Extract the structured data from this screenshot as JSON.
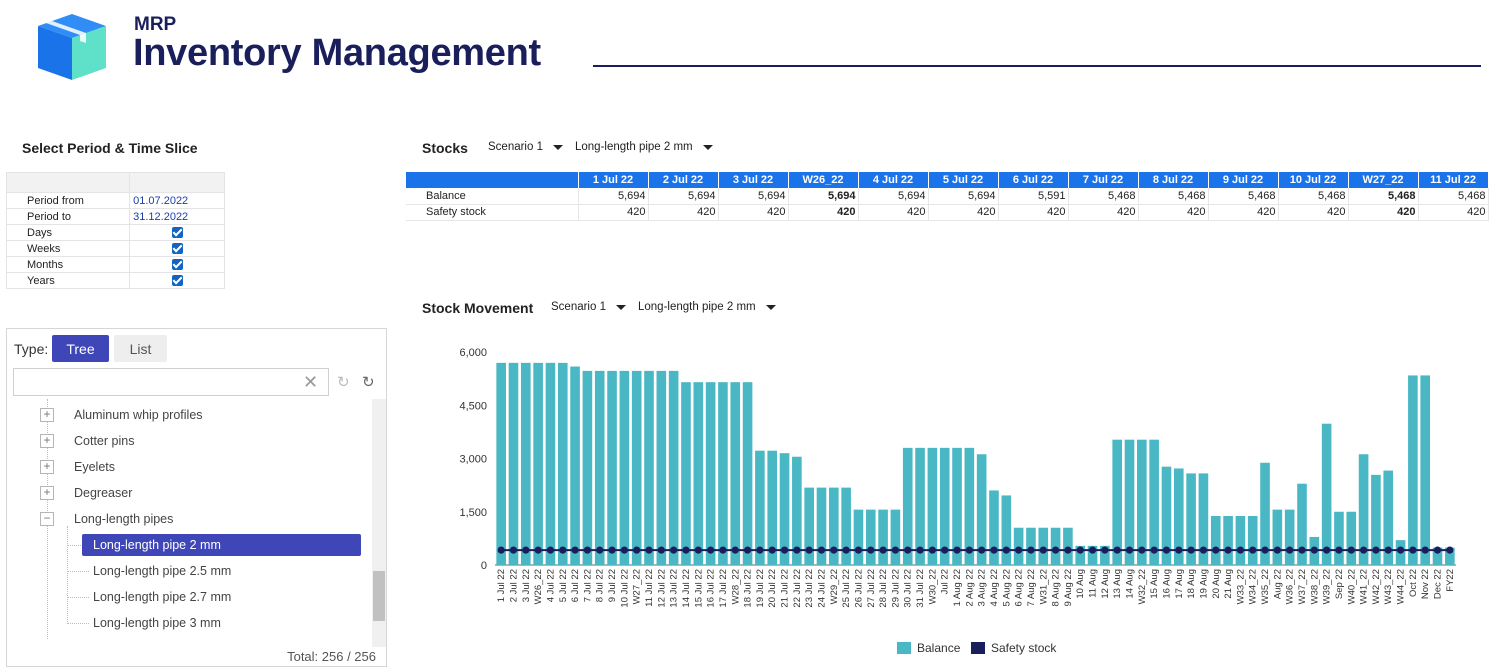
{
  "header": {
    "brand_small": "MRP",
    "title": "Inventory Management",
    "brand_color": "#1a1f5c"
  },
  "period": {
    "title": "Select Period & Time Slice",
    "rows": [
      {
        "label": "Period from",
        "value": "01.07.2022"
      },
      {
        "label": "Period to",
        "value": "31.12.2022"
      },
      {
        "label": "Days",
        "checked": true
      },
      {
        "label": "Weeks",
        "checked": true
      },
      {
        "label": "Months",
        "checked": true
      },
      {
        "label": "Years",
        "checked": true
      }
    ]
  },
  "tree": {
    "type_label": "Type:",
    "tree_button": "Tree",
    "list_button": "List",
    "search_value": "",
    "items": [
      {
        "label": "Aluminum whip profiles",
        "expander": "+"
      },
      {
        "label": "Cotter pins",
        "expander": "+"
      },
      {
        "label": "Eyelets",
        "expander": "+"
      },
      {
        "label": "Degreaser",
        "expander": "+"
      },
      {
        "label": "Long-length pipes",
        "expander": "−"
      }
    ],
    "children": [
      {
        "label": "Long-length pipe 2 mm",
        "selected": true
      },
      {
        "label": "Long-length pipe 2.5 mm"
      },
      {
        "label": "Long-length pipe 2.7 mm"
      },
      {
        "label": "Long-length pipe 3 mm"
      }
    ],
    "total": "Total: 256 / 256",
    "selected_color": "#3f47b8"
  },
  "stocks": {
    "title": "Stocks",
    "scenario": "Scenario 1",
    "product": "Long-length pipe 2 mm",
    "columns": [
      "1 Jul 22",
      "2 Jul 22",
      "3 Jul 22",
      "W26_22",
      "4 Jul 22",
      "5 Jul 22",
      "6 Jul 22",
      "7 Jul 22",
      "8 Jul 22",
      "9 Jul 22",
      "10 Jul 22",
      "W27_22",
      "11 Jul 22"
    ],
    "rows": [
      {
        "label": "Balance",
        "values": [
          "5,694",
          "5,694",
          "5,694",
          "5,694",
          "5,694",
          "5,694",
          "5,591",
          "5,468",
          "5,468",
          "5,468",
          "5,468",
          "5,468",
          "5,468"
        ]
      },
      {
        "label": "Safety stock",
        "values": [
          "420",
          "420",
          "420",
          "420",
          "420",
          "420",
          "420",
          "420",
          "420",
          "420",
          "420",
          "420",
          "420"
        ]
      }
    ],
    "bold_columns": [
      3,
      11
    ],
    "header_color": "#1a73e8"
  },
  "movement": {
    "title": "Stock Movement",
    "scenario": "Scenario 1",
    "product": "Long-length pipe 2 mm"
  },
  "chart_data": {
    "type": "bar",
    "title": "Stock Movement",
    "categories": [
      "1 Jul 22",
      "2 Jul 22",
      "3 Jul 22",
      "W26_22",
      "4 Jul 22",
      "5 Jul 22",
      "6 Jul 22",
      "7 Jul 22",
      "8 Jul 22",
      "9 Jul 22",
      "10 Jul 22",
      "W27_22",
      "11 Jul 22",
      "12 Jul 22",
      "13 Jul 22",
      "14 Jul 22",
      "15 Jul 22",
      "16 Jul 22",
      "17 Jul 22",
      "W28_22",
      "18 Jul 22",
      "19 Jul 22",
      "20 Jul 22",
      "21 Jul 22",
      "22 Jul 22",
      "23 Jul 22",
      "24 Jul 22",
      "W29_22",
      "25 Jul 22",
      "26 Jul 22",
      "27 Jul 22",
      "28 Jul 22",
      "29 Jul 22",
      "30 Jul 22",
      "31 Jul 22",
      "W30_22",
      "Jul 22",
      "1 Aug 22",
      "2 Aug 22",
      "3 Aug 22",
      "4 Aug 22",
      "5 Aug 22",
      "6 Aug 22",
      "7 Aug 22",
      "W31_22",
      "8 Aug 22",
      "9 Aug 22",
      "10 Aug",
      "11 Aug",
      "12 Aug",
      "13 Aug",
      "14 Aug",
      "W32_22",
      "15 Aug",
      "16 Aug",
      "17 Aug",
      "18 Aug",
      "19 Aug",
      "20 Aug",
      "21 Aug",
      "W33_22",
      "W34_22",
      "W35_22",
      "Aug 22",
      "W36_22",
      "W37_22",
      "W38_22",
      "W39_22",
      "Sep 22",
      "W40_22",
      "W41_22",
      "W42_22",
      "W43_22",
      "W44_22",
      "Oct 22",
      "Nov 22",
      "Dec 22",
      "FY22"
    ],
    "series": [
      {
        "name": "Balance",
        "color": "#4ab8c4",
        "values": [
          5694,
          5694,
          5694,
          5694,
          5694,
          5694,
          5591,
          5468,
          5468,
          5468,
          5468,
          5468,
          5468,
          5468,
          5468,
          5150,
          5150,
          5150,
          5150,
          5150,
          5150,
          3220,
          3220,
          3150,
          3050,
          2180,
          2180,
          2180,
          2180,
          1560,
          1560,
          1560,
          1560,
          3300,
          3300,
          3300,
          3300,
          3300,
          3300,
          3120,
          2100,
          1960,
          1050,
          1050,
          1050,
          1050,
          1050,
          540,
          540,
          540,
          3530,
          3530,
          3530,
          3530,
          2770,
          2720,
          2580,
          2580,
          1380,
          1380,
          1380,
          1380,
          2880,
          1560,
          1560,
          2290,
          790,
          3980,
          1500,
          1500,
          3120,
          2540,
          2660,
          700,
          5340,
          5340,
          490,
          490
        ]
      },
      {
        "name": "Safety stock",
        "color": "#1a1f5c",
        "values": [
          420,
          420,
          420,
          420,
          420,
          420,
          420,
          420,
          420,
          420,
          420,
          420,
          420,
          420,
          420,
          420,
          420,
          420,
          420,
          420,
          420,
          420,
          420,
          420,
          420,
          420,
          420,
          420,
          420,
          420,
          420,
          420,
          420,
          420,
          420,
          420,
          420,
          420,
          420,
          420,
          420,
          420,
          420,
          420,
          420,
          420,
          420,
          420,
          420,
          420,
          420,
          420,
          420,
          420,
          420,
          420,
          420,
          420,
          420,
          420,
          420,
          420,
          420,
          420,
          420,
          420,
          420,
          420,
          420,
          420,
          420,
          420,
          420,
          420,
          420,
          420,
          420,
          420
        ]
      }
    ],
    "ylim": [
      0,
      6000
    ],
    "yticks": [
      "6,000",
      "4,500",
      "3,000",
      "1,500",
      "0"
    ],
    "ytick_values": [
      6000,
      4500,
      3000,
      1500,
      0
    ],
    "legend": [
      "Balance",
      "Safety stock"
    ],
    "legend_position": "bottom-center"
  }
}
